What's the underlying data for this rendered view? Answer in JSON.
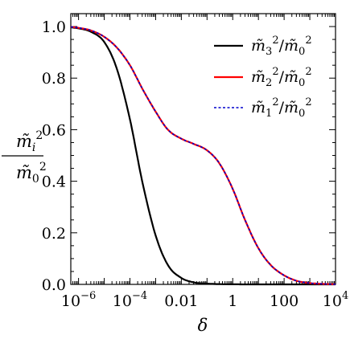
{
  "chart_data": {
    "type": "line",
    "xscale": "log",
    "xlim": [
      5e-07,
      10000
    ],
    "ylim": [
      0,
      1.05
    ],
    "xlabel": "δ",
    "ylabel": {
      "numerator": "m̃i2",
      "denominator": "m̃02"
    },
    "xticks": [
      {
        "value": 1e-06,
        "base": "10",
        "exp": "−6"
      },
      {
        "value": 0.0001,
        "base": "10",
        "exp": "−4"
      },
      {
        "value": 0.01,
        "base": "0.01",
        "exp": ""
      },
      {
        "value": 1,
        "base": "1",
        "exp": ""
      },
      {
        "value": 100,
        "base": "100",
        "exp": ""
      },
      {
        "value": 10000,
        "base": "10",
        "exp": "4"
      }
    ],
    "yticks": [
      {
        "value": 0.0,
        "label": "0.0"
      },
      {
        "value": 0.2,
        "label": "0.2"
      },
      {
        "value": 0.4,
        "label": "0.4"
      },
      {
        "value": 0.6,
        "label": "0.6"
      },
      {
        "value": 0.8,
        "label": "0.8"
      },
      {
        "value": 1.0,
        "label": "1.0"
      }
    ],
    "legend_position": "top-right",
    "series": [
      {
        "name": "m̃3²/m̃0²",
        "legend": {
          "a": "m̃",
          "a_sub": "3",
          "a_sup": "2",
          "slash": "/",
          "b": "m̃",
          "b_sub": "0",
          "b_sup": "2"
        },
        "color": "#000000",
        "dash": "solid",
        "x": [
          5e-07,
          1e-06,
          3e-06,
          1e-05,
          3e-05,
          0.0001,
          0.0003,
          0.001,
          0.003,
          0.01,
          0.03,
          0.1,
          0.3,
          1,
          3,
          10,
          100,
          10000
        ],
        "y": [
          0.997,
          0.993,
          0.98,
          0.94,
          0.84,
          0.64,
          0.4,
          0.19,
          0.075,
          0.025,
          0.008,
          0.003,
          0.001,
          0.0003,
          0.0001,
          0.0,
          0.0,
          0.0
        ]
      },
      {
        "name": "m̃2²/m̃0²",
        "legend": {
          "a": "m̃",
          "a_sub": "2",
          "a_sup": "2",
          "slash": "/",
          "b": "m̃",
          "b_sub": "0",
          "b_sup": "2"
        },
        "color": "#ff0000",
        "dash": "solid",
        "x": [
          5e-07,
          1e-06,
          3e-06,
          1e-05,
          3e-05,
          0.0001,
          0.0003,
          0.001,
          0.003,
          0.01,
          0.03,
          0.1,
          0.3,
          1,
          3,
          10,
          30,
          100,
          300,
          1000,
          3000,
          10000
        ],
        "y": [
          0.999,
          0.995,
          0.985,
          0.96,
          0.92,
          0.85,
          0.76,
          0.67,
          0.6,
          0.565,
          0.545,
          0.52,
          0.47,
          0.37,
          0.25,
          0.14,
          0.075,
          0.035,
          0.014,
          0.005,
          0.002,
          0.0005
        ]
      },
      {
        "name": "m̃1²/m̃0²",
        "legend": {
          "a": "m̃",
          "a_sub": "1",
          "a_sup": "2",
          "slash": "/",
          "b": "m̃",
          "b_sub": "0",
          "b_sup": "2"
        },
        "color": "#0000cc",
        "dash": "dashed",
        "x": [
          5e-07,
          1e-06,
          3e-06,
          1e-05,
          3e-05,
          0.0001,
          0.0003,
          0.001,
          0.003,
          0.01,
          0.03,
          0.1,
          0.3,
          1,
          3,
          10,
          30,
          100,
          300,
          1000,
          3000,
          10000
        ],
        "y": [
          0.999,
          0.995,
          0.985,
          0.96,
          0.92,
          0.85,
          0.76,
          0.67,
          0.6,
          0.565,
          0.545,
          0.52,
          0.47,
          0.37,
          0.25,
          0.14,
          0.075,
          0.035,
          0.014,
          0.005,
          0.002,
          0.0005
        ]
      }
    ]
  }
}
